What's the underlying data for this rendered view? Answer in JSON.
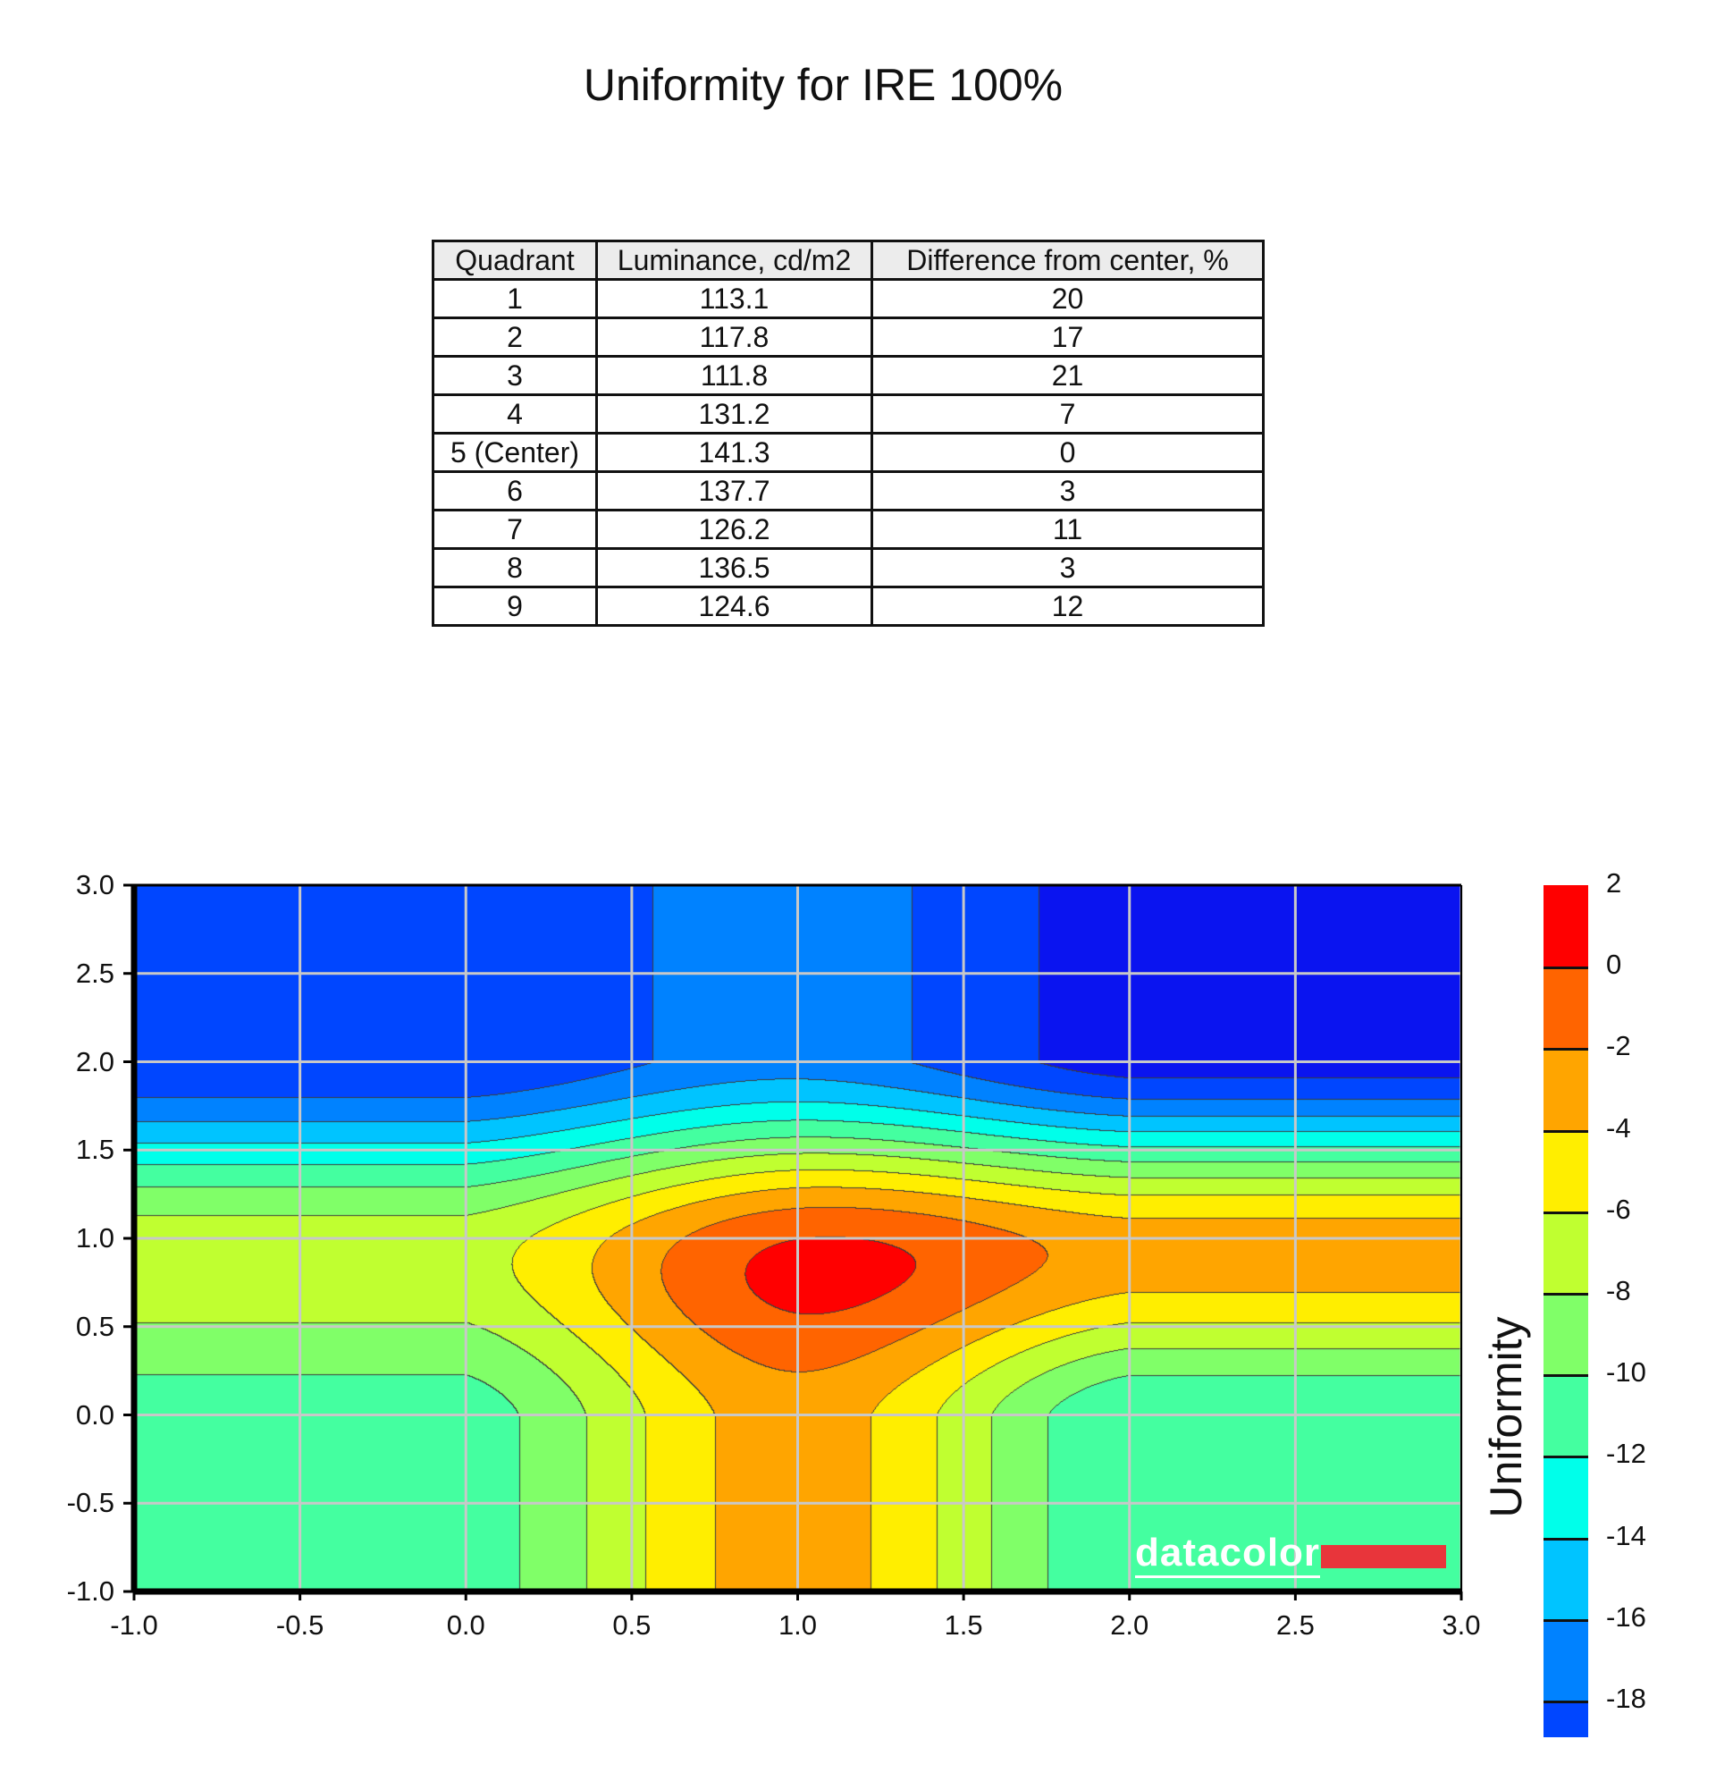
{
  "title": "Uniformity for IRE 100%",
  "table": {
    "headers": [
      "Quadrant",
      "Luminance, cd/m2",
      "Difference from center, %"
    ],
    "rows": [
      [
        "1",
        "113.1",
        "20"
      ],
      [
        "2",
        "117.8",
        "17"
      ],
      [
        "3",
        "111.8",
        "21"
      ],
      [
        "4",
        "131.2",
        "7"
      ],
      [
        "5 (Center)",
        "141.3",
        "0"
      ],
      [
        "6",
        "137.7",
        "3"
      ],
      [
        "7",
        "126.2",
        "11"
      ],
      [
        "8",
        "136.5",
        "3"
      ],
      [
        "9",
        "124.6",
        "12"
      ]
    ]
  },
  "chart_data": {
    "type": "heatmap",
    "subtype": "filled-contour",
    "xlim": [
      -1.0,
      3.0
    ],
    "ylim": [
      -1.0,
      3.0
    ],
    "xticks": [
      "-1.0",
      "-0.5",
      "0.0",
      "0.5",
      "1.0",
      "1.5",
      "2.0",
      "2.5",
      "3.0"
    ],
    "yticks": [
      "-1.0",
      "-0.5",
      "0.0",
      "0.5",
      "1.0",
      "1.5",
      "2.0",
      "2.5",
      "3.0"
    ],
    "grid": true,
    "grid_x": [
      0,
      1,
      2
    ],
    "grid_y": [
      2,
      1,
      0
    ],
    "z": [
      [
        -20,
        -17,
        -21
      ],
      [
        -7,
        0,
        -3
      ],
      [
        -11,
        -3,
        -12
      ]
    ],
    "colorbar": {
      "label": "Uniformity",
      "ticks": [
        "2",
        "0",
        "-2",
        "-4",
        "-6",
        "-8",
        "-10",
        "-12",
        "-14",
        "-16",
        "-18"
      ],
      "levels": [
        2,
        0,
        -2,
        -4,
        -6,
        -8,
        -10,
        -12,
        -14,
        -16,
        -18,
        -20
      ],
      "colors": [
        "#ff0000",
        "#ff6400",
        "#ffa500",
        "#ffee00",
        "#c0ff30",
        "#80ff68",
        "#44ffa0",
        "#00ffea",
        "#00c4ff",
        "#0082ff",
        "#0046ff"
      ],
      "below_colors": [
        "#0a14f0",
        "#0000b0"
      ]
    }
  },
  "watermark": "datacolor"
}
